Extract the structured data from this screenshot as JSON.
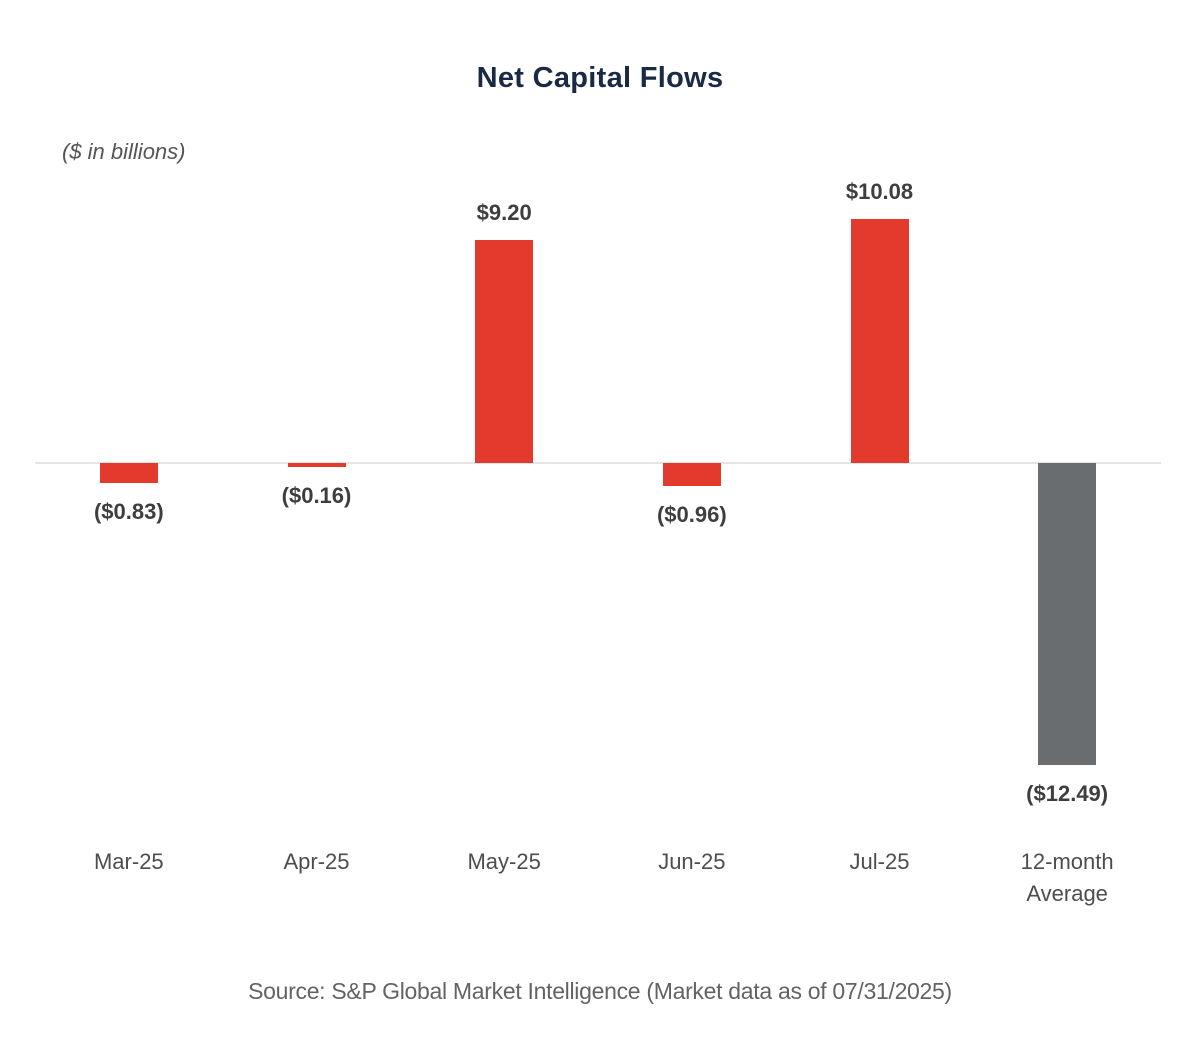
{
  "title": "Net Capital Flows",
  "units_note": "($ in billions)",
  "source": "Source: S&P Global Market Intelligence (Market data as of 07/31/2025)",
  "colors": {
    "title": "#1A2944",
    "monthly_bar": "#E23B2E",
    "average_bar": "#696D70",
    "zero_line": "#e4e4e4",
    "value_label": "#3E3E3E",
    "axis_label": "#4D4D4D",
    "source_text": "#636363"
  },
  "chart_data": {
    "type": "bar",
    "title": "Net Capital Flows",
    "units_note": "($ in billions)",
    "categories": [
      "Mar-25",
      "Apr-25",
      "May-25",
      "Jun-25",
      "Jul-25",
      "12-month Average"
    ],
    "values": [
      -0.83,
      -0.16,
      9.2,
      -0.96,
      10.08,
      -12.49
    ],
    "value_labels": [
      "($0.83)",
      "($0.16)",
      "$9.20",
      "($0.96)",
      "$10.08",
      "($12.49)"
    ],
    "bar_colors": [
      "#E23B2E",
      "#E23B2E",
      "#E23B2E",
      "#E23B2E",
      "#E23B2E",
      "#696D70"
    ],
    "baseline": 0,
    "grid": false,
    "legend": false,
    "ylim": [
      -13.5,
      11.5
    ],
    "source": "Source: S&P Global Market Intelligence (Market data as of 07/31/2025)"
  }
}
